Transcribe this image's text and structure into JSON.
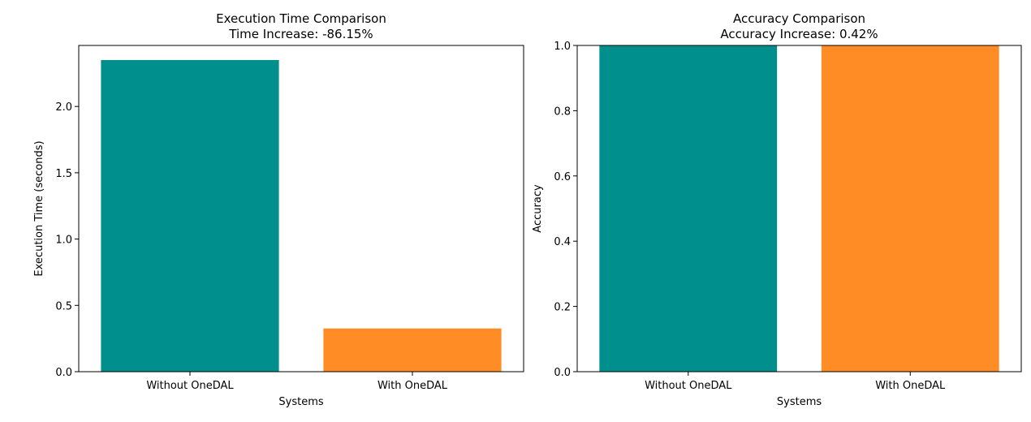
{
  "chart_data": [
    {
      "type": "bar",
      "title": "Execution Time Comparison",
      "subtitle": "Time Increase: -86.15%",
      "xlabel": "Systems",
      "ylabel": "Execution Time (seconds)",
      "categories": [
        "Without OneDAL",
        "With OneDAL"
      ],
      "values": [
        2.35,
        0.326
      ],
      "colors": [
        "#008f8c",
        "#ff8c25"
      ],
      "ylim": [
        0,
        2.46
      ],
      "yticks": [
        0.0,
        0.5,
        1.0,
        1.5,
        2.0
      ],
      "ytick_labels": [
        "0.0",
        "0.5",
        "1.0",
        "1.5",
        "2.0"
      ],
      "grid": false,
      "legend": "none"
    },
    {
      "type": "bar",
      "title": "Accuracy Comparison",
      "subtitle": "Accuracy Increase: 0.42%",
      "xlabel": "Systems",
      "ylabel": "Accuracy",
      "categories": [
        "Without OneDAL",
        "With OneDAL"
      ],
      "values": [
        1.0,
        1.0
      ],
      "colors": [
        "#008f8c",
        "#ff8c25"
      ],
      "ylim": [
        0,
        1.0
      ],
      "yticks": [
        0.0,
        0.2,
        0.4,
        0.6,
        0.8,
        1.0
      ],
      "ytick_labels": [
        "0.0",
        "0.2",
        "0.4",
        "0.6",
        "0.8",
        "1.0"
      ],
      "grid": false,
      "legend": "none"
    }
  ]
}
